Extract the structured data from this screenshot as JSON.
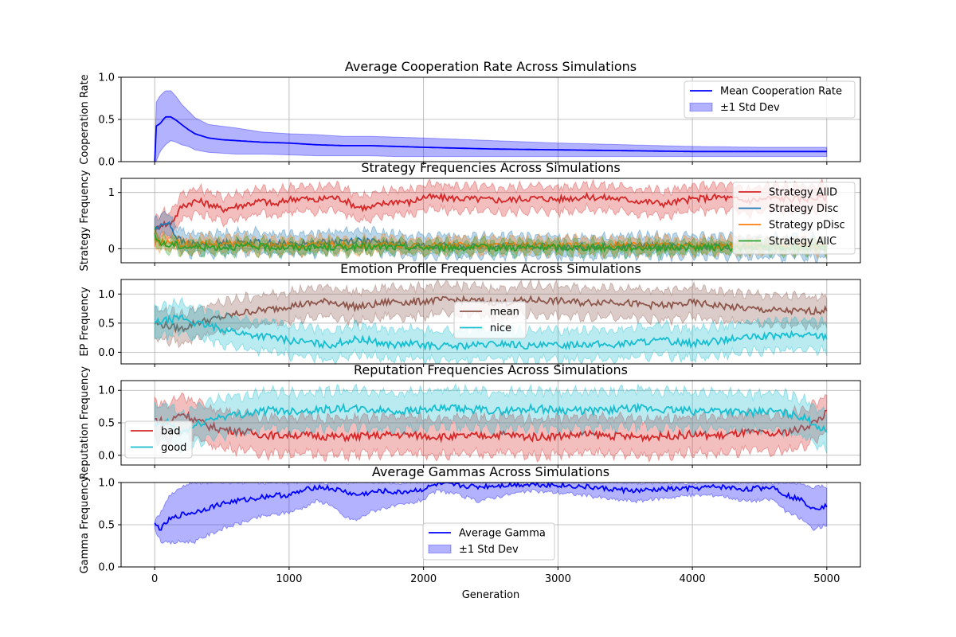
{
  "figure": {
    "xlabel": "Generation",
    "xticks": [
      "0",
      "1000",
      "2000",
      "3000",
      "4000",
      "5000"
    ]
  },
  "chart_data": [
    {
      "type": "line",
      "title": "Average Cooperation Rate Across Simulations",
      "ylabel": "Cooperation Rate",
      "xlim": [
        -250,
        5250
      ],
      "ylim": [
        0.0,
        1.0
      ],
      "yticks": [
        "0.0",
        "0.5",
        "1.0"
      ],
      "ytick_values": [
        0.0,
        0.5,
        1.0
      ],
      "grid": true,
      "legend_position": "upper right",
      "series": [
        {
          "name": "Mean Cooperation Rate",
          "color": "#0000ff",
          "band_label": "±1 Std Dev",
          "band_color": "#0000ff",
          "x": [
            0,
            10,
            40,
            80,
            120,
            160,
            200,
            250,
            300,
            400,
            500,
            600,
            800,
            1000,
            1200,
            1400,
            1600,
            1800,
            2000,
            2500,
            3000,
            3500,
            4000,
            4500,
            5000
          ],
          "y": [
            0.0,
            0.42,
            0.45,
            0.53,
            0.53,
            0.49,
            0.44,
            0.38,
            0.33,
            0.28,
            0.26,
            0.25,
            0.23,
            0.22,
            0.2,
            0.19,
            0.19,
            0.18,
            0.17,
            0.15,
            0.14,
            0.13,
            0.12,
            0.12,
            0.12
          ],
          "lower": [
            0.0,
            0.0,
            0.12,
            0.2,
            0.25,
            0.23,
            0.2,
            0.18,
            0.14,
            0.11,
            0.1,
            0.09,
            0.09,
            0.08,
            0.07,
            0.07,
            0.07,
            0.06,
            0.06,
            0.06,
            0.06,
            0.06,
            0.06,
            0.06,
            0.06
          ],
          "upper": [
            0.0,
            0.7,
            0.78,
            0.84,
            0.84,
            0.77,
            0.68,
            0.6,
            0.52,
            0.44,
            0.42,
            0.4,
            0.35,
            0.33,
            0.32,
            0.3,
            0.3,
            0.29,
            0.28,
            0.25,
            0.22,
            0.2,
            0.18,
            0.17,
            0.17
          ]
        }
      ]
    },
    {
      "type": "line",
      "title": "Strategy Frequencies Across Simulations",
      "ylabel": "Strategy Frequency",
      "xlim": [
        -250,
        5250
      ],
      "ylim": [
        -0.25,
        1.25
      ],
      "yticks": [
        "0",
        "1"
      ],
      "ytick_values": [
        0,
        1
      ],
      "grid": true,
      "legend_position": "upper right",
      "series": [
        {
          "name": "Strategy AllD",
          "color": "#d62728",
          "x": [
            0,
            50,
            100,
            150,
            200,
            300,
            400,
            500,
            600,
            700,
            800,
            900,
            1000,
            1100,
            1200,
            1300,
            1400,
            1500,
            1600,
            1700,
            1800,
            1900,
            2000,
            2200,
            2400,
            2600,
            2800,
            3000,
            3200,
            3400,
            3600,
            3800,
            4000,
            4200,
            4400,
            4600,
            4800,
            5000
          ],
          "y": [
            0.3,
            0.45,
            0.42,
            0.55,
            0.75,
            0.85,
            0.8,
            0.7,
            0.75,
            0.8,
            0.85,
            0.78,
            0.88,
            0.9,
            0.85,
            0.92,
            0.88,
            0.75,
            0.72,
            0.8,
            0.85,
            0.82,
            0.92,
            0.9,
            0.88,
            0.86,
            0.9,
            0.88,
            0.92,
            0.9,
            0.85,
            0.8,
            0.88,
            0.92,
            0.85,
            0.9,
            0.88,
            0.92
          ],
          "spread": 0.22
        },
        {
          "name": "Strategy Disc",
          "color": "#1f77b4",
          "x": [
            0,
            50,
            100,
            150,
            200,
            300,
            500,
            700,
            1000,
            1200,
            1500,
            1700,
            2000,
            2500,
            3000,
            3500,
            4000,
            4500,
            5000
          ],
          "y": [
            0.35,
            0.4,
            0.5,
            0.25,
            0.12,
            0.08,
            0.1,
            0.12,
            0.08,
            0.1,
            0.15,
            0.1,
            0.05,
            0.05,
            0.04,
            0.05,
            0.04,
            0.03,
            0.03
          ],
          "spread": 0.18
        },
        {
          "name": "Strategy pDisc",
          "color": "#ff7f0e",
          "x": [
            0,
            50,
            100,
            150,
            200,
            300,
            500,
            700,
            1000,
            1500,
            2000,
            2500,
            3000,
            3500,
            4000,
            4500,
            5000
          ],
          "y": [
            0.15,
            0.1,
            0.12,
            0.1,
            0.08,
            0.07,
            0.08,
            0.08,
            0.06,
            0.07,
            0.05,
            0.06,
            0.05,
            0.05,
            0.06,
            0.05,
            0.04
          ],
          "spread": 0.12
        },
        {
          "name": "Strategy AllC",
          "color": "#2ca02c",
          "x": [
            0,
            50,
            100,
            150,
            200,
            300,
            500,
            700,
            1000,
            1500,
            2000,
            2500,
            3000,
            3500,
            4000,
            4500,
            5000
          ],
          "y": [
            0.2,
            0.1,
            0.05,
            0.08,
            0.04,
            0.03,
            0.03,
            0.04,
            0.02,
            0.03,
            0.02,
            0.02,
            0.02,
            0.02,
            0.02,
            0.02,
            0.02
          ],
          "spread": 0.1
        }
      ]
    },
    {
      "type": "line",
      "title": "Emotion Profile Frequencies Across Simulations",
      "ylabel": "EP Frequency",
      "xlim": [
        -250,
        5250
      ],
      "ylim": [
        -0.2,
        1.25
      ],
      "yticks": [
        "0.0",
        "0.5",
        "1.0"
      ],
      "ytick_values": [
        0.0,
        0.5,
        1.0
      ],
      "grid": true,
      "legend_position": "center",
      "series": [
        {
          "name": "mean",
          "color": "#8c564b",
          "x": [
            0,
            100,
            200,
            300,
            400,
            500,
            600,
            700,
            800,
            900,
            1000,
            1100,
            1200,
            1300,
            1400,
            1500,
            1600,
            1700,
            1800,
            1900,
            2000,
            2200,
            2400,
            2600,
            2800,
            3000,
            3200,
            3400,
            3600,
            3800,
            4000,
            4200,
            4400,
            4600,
            4800,
            5000
          ],
          "y": [
            0.5,
            0.45,
            0.4,
            0.5,
            0.55,
            0.6,
            0.65,
            0.7,
            0.72,
            0.75,
            0.8,
            0.82,
            0.85,
            0.88,
            0.82,
            0.78,
            0.8,
            0.85,
            0.88,
            0.85,
            0.88,
            0.9,
            0.88,
            0.85,
            0.9,
            0.88,
            0.85,
            0.88,
            0.82,
            0.8,
            0.85,
            0.8,
            0.75,
            0.72,
            0.7,
            0.72
          ],
          "spread": 0.25
        },
        {
          "name": "nice",
          "color": "#17becf",
          "x": [
            0,
            100,
            200,
            300,
            400,
            500,
            600,
            700,
            800,
            900,
            1000,
            1100,
            1200,
            1300,
            1400,
            1500,
            1600,
            1700,
            1800,
            1900,
            2000,
            2200,
            2400,
            2600,
            2800,
            3000,
            3200,
            3400,
            3600,
            3800,
            4000,
            4200,
            4400,
            4600,
            4800,
            5000
          ],
          "y": [
            0.5,
            0.55,
            0.6,
            0.5,
            0.45,
            0.4,
            0.35,
            0.3,
            0.28,
            0.25,
            0.2,
            0.18,
            0.15,
            0.12,
            0.18,
            0.22,
            0.2,
            0.15,
            0.12,
            0.15,
            0.12,
            0.1,
            0.12,
            0.15,
            0.1,
            0.12,
            0.15,
            0.12,
            0.18,
            0.2,
            0.15,
            0.2,
            0.25,
            0.28,
            0.3,
            0.28
          ],
          "spread": 0.25
        }
      ]
    },
    {
      "type": "line",
      "title": "Reputation Frequencies Across Simulations",
      "ylabel": "Reputation Frequency",
      "xlim": [
        -250,
        5250
      ],
      "ylim": [
        -0.15,
        1.15
      ],
      "yticks": [
        "0.0",
        "0.5",
        "1.0"
      ],
      "ytick_values": [
        0.0,
        0.5,
        1.0
      ],
      "grid": true,
      "legend_position": "lower left",
      "series": [
        {
          "name": "bad",
          "color": "#d62728",
          "x": [
            0,
            100,
            200,
            300,
            400,
            500,
            600,
            700,
            800,
            900,
            1000,
            1200,
            1400,
            1600,
            1800,
            2000,
            2200,
            2400,
            2600,
            2800,
            3000,
            3200,
            3400,
            3600,
            3800,
            4000,
            4200,
            4400,
            4600,
            4800,
            4900,
            5000
          ],
          "y": [
            0.55,
            0.5,
            0.65,
            0.55,
            0.45,
            0.4,
            0.38,
            0.35,
            0.32,
            0.3,
            0.32,
            0.3,
            0.28,
            0.3,
            0.32,
            0.3,
            0.28,
            0.3,
            0.32,
            0.28,
            0.3,
            0.32,
            0.3,
            0.28,
            0.3,
            0.32,
            0.3,
            0.35,
            0.32,
            0.4,
            0.5,
            0.65
          ],
          "spread": 0.28
        },
        {
          "name": "good",
          "color": "#17becf",
          "x": [
            0,
            100,
            200,
            300,
            400,
            500,
            600,
            700,
            800,
            900,
            1000,
            1200,
            1400,
            1600,
            1800,
            2000,
            2200,
            2400,
            2600,
            2800,
            3000,
            3200,
            3400,
            3600,
            3800,
            4000,
            4200,
            4400,
            4600,
            4800,
            4900,
            5000
          ],
          "y": [
            0.45,
            0.5,
            0.35,
            0.45,
            0.55,
            0.6,
            0.62,
            0.65,
            0.68,
            0.7,
            0.68,
            0.7,
            0.72,
            0.7,
            0.68,
            0.7,
            0.72,
            0.7,
            0.68,
            0.72,
            0.7,
            0.68,
            0.7,
            0.72,
            0.7,
            0.68,
            0.7,
            0.65,
            0.68,
            0.6,
            0.5,
            0.35
          ],
          "spread": 0.28
        }
      ]
    },
    {
      "type": "line",
      "title": "Average Gammas Across Simulations",
      "ylabel": "Gamma Frequency",
      "xlim": [
        -250,
        5250
      ],
      "ylim": [
        0.0,
        1.0
      ],
      "yticks": [
        "0.0",
        "0.5",
        "1.0"
      ],
      "ytick_values": [
        0.0,
        0.5,
        1.0
      ],
      "grid": true,
      "legend_position": "lower center",
      "series": [
        {
          "name": "Average Gamma",
          "color": "#0000ff",
          "band_label": "±1 Std Dev",
          "band_color": "#0000ff",
          "x": [
            0,
            50,
            100,
            200,
            300,
            400,
            500,
            600,
            700,
            800,
            900,
            1000,
            1100,
            1200,
            1300,
            1400,
            1500,
            1600,
            1700,
            1800,
            1900,
            2000,
            2100,
            2200,
            2400,
            2600,
            2800,
            3000,
            3200,
            3400,
            3600,
            3800,
            4000,
            4200,
            4400,
            4600,
            4700,
            4800,
            4900,
            5000
          ],
          "y": [
            0.5,
            0.45,
            0.55,
            0.62,
            0.65,
            0.7,
            0.75,
            0.78,
            0.8,
            0.83,
            0.85,
            0.85,
            0.9,
            0.95,
            0.93,
            0.9,
            0.85,
            0.88,
            0.9,
            0.88,
            0.9,
            0.92,
            0.98,
            0.97,
            0.95,
            0.97,
            0.98,
            0.97,
            0.95,
            0.92,
            0.9,
            0.92,
            0.93,
            0.95,
            0.92,
            0.95,
            0.85,
            0.8,
            0.7,
            0.72
          ],
          "lower": [
            0.45,
            0.3,
            0.28,
            0.3,
            0.3,
            0.38,
            0.45,
            0.5,
            0.55,
            0.6,
            0.62,
            0.65,
            0.7,
            0.78,
            0.75,
            0.6,
            0.55,
            0.65,
            0.7,
            0.72,
            0.75,
            0.8,
            0.9,
            0.88,
            0.78,
            0.85,
            0.9,
            0.88,
            0.85,
            0.8,
            0.78,
            0.82,
            0.85,
            0.85,
            0.78,
            0.8,
            0.65,
            0.58,
            0.45,
            0.5
          ],
          "upper": [
            0.55,
            0.65,
            0.82,
            0.95,
            1.0,
            1.0,
            1.0,
            1.0,
            1.0,
            1.0,
            1.0,
            1.0,
            1.0,
            1.0,
            1.0,
            1.0,
            1.0,
            1.0,
            1.0,
            1.0,
            1.0,
            1.0,
            1.0,
            1.0,
            1.0,
            1.0,
            1.0,
            1.0,
            1.0,
            1.0,
            1.0,
            1.0,
            1.0,
            1.0,
            1.0,
            1.0,
            1.0,
            1.0,
            0.95,
            0.95
          ]
        }
      ]
    }
  ]
}
